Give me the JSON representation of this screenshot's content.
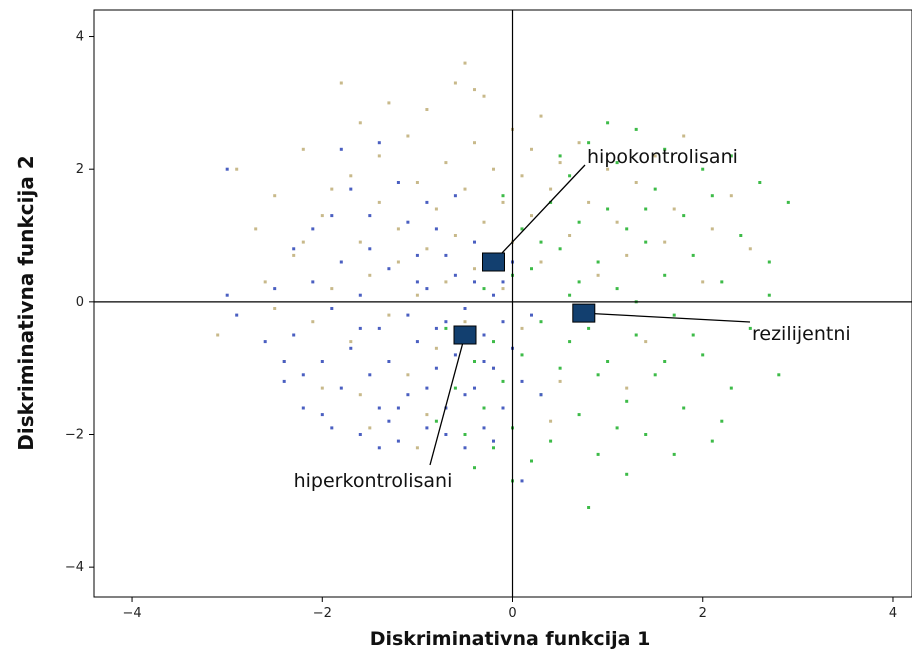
{
  "chart_data": {
    "type": "scatter",
    "xlabel": "Diskriminativna funkcija 1",
    "ylabel": "Diskriminativna funkcija 2",
    "xlim": [
      -4.4,
      4.2
    ],
    "ylim": [
      -4.45,
      4.4
    ],
    "x_ticks": [
      -4,
      -2,
      0,
      2,
      4
    ],
    "y_ticks": [
      -4,
      -2,
      0,
      2,
      4
    ],
    "reference_lines": {
      "x": 0,
      "y": 0
    },
    "colors": {
      "hipokontrolisani": "#c8b98a",
      "rezilijentni": "#3dbb48",
      "hiperkontrolisani": "#4a5fc1",
      "centroid": "#123f6f"
    },
    "centroids": [
      {
        "label": "hipokontrolisani",
        "x": -0.2,
        "y": 0.6
      },
      {
        "label": "rezilijentni",
        "x": 0.75,
        "y": -0.17
      },
      {
        "label": "hiperkontrolisani",
        "x": -0.5,
        "y": -0.5
      }
    ],
    "series": [
      {
        "group": "hipokontrolisani",
        "color": "#c8b98a",
        "points": [
          [
            -3.1,
            -0.5
          ],
          [
            -2.9,
            2.0
          ],
          [
            -2.7,
            1.1
          ],
          [
            -2.6,
            0.3
          ],
          [
            -2.5,
            1.6
          ],
          [
            -2.4,
            -0.9
          ],
          [
            -2.3,
            0.7
          ],
          [
            -2.2,
            2.3
          ],
          [
            -2.1,
            -0.3
          ],
          [
            -2.0,
            1.3
          ],
          [
            -2.0,
            -1.3
          ],
          [
            -1.9,
            0.2
          ],
          [
            -1.8,
            3.3
          ],
          [
            -1.7,
            1.9
          ],
          [
            -1.7,
            -0.6
          ],
          [
            -1.6,
            0.9
          ],
          [
            -1.6,
            2.7
          ],
          [
            -1.5,
            -1.9
          ],
          [
            -1.5,
            0.4
          ],
          [
            -1.4,
            1.5
          ],
          [
            -1.4,
            2.2
          ],
          [
            -1.3,
            -0.2
          ],
          [
            -1.3,
            3.0
          ],
          [
            -1.2,
            1.1
          ],
          [
            -1.2,
            0.6
          ],
          [
            -1.1,
            2.5
          ],
          [
            -1.1,
            -1.1
          ],
          [
            -1.0,
            1.8
          ],
          [
            -1.0,
            0.1
          ],
          [
            -0.9,
            2.9
          ],
          [
            -0.9,
            0.8
          ],
          [
            -0.8,
            1.4
          ],
          [
            -0.8,
            -0.7
          ],
          [
            -0.7,
            2.1
          ],
          [
            -0.7,
            0.3
          ],
          [
            -0.6,
            3.3
          ],
          [
            -0.6,
            1.0
          ],
          [
            -0.5,
            1.7
          ],
          [
            -0.5,
            -0.3
          ],
          [
            -0.4,
            2.4
          ],
          [
            -0.4,
            0.5
          ],
          [
            -0.3,
            3.1
          ],
          [
            -0.3,
            1.2
          ],
          [
            -0.2,
            2.0
          ],
          [
            -0.2,
            -1.0
          ],
          [
            -0.1,
            1.5
          ],
          [
            -0.1,
            0.2
          ],
          [
            0.0,
            2.6
          ],
          [
            0.0,
            0.9
          ],
          [
            0.1,
            1.9
          ],
          [
            0.1,
            -0.4
          ],
          [
            0.2,
            1.3
          ],
          [
            0.2,
            2.3
          ],
          [
            0.3,
            0.6
          ],
          [
            0.4,
            1.7
          ],
          [
            0.5,
            2.1
          ],
          [
            0.5,
            -1.2
          ],
          [
            0.6,
            1.0
          ],
          [
            0.7,
            2.4
          ],
          [
            0.8,
            1.5
          ],
          [
            0.9,
            0.4
          ],
          [
            1.0,
            2.0
          ],
          [
            1.1,
            1.2
          ],
          [
            1.2,
            0.7
          ],
          [
            1.3,
            1.8
          ],
          [
            1.4,
            -0.6
          ],
          [
            1.5,
            2.2
          ],
          [
            1.6,
            0.9
          ],
          [
            1.7,
            1.4
          ],
          [
            1.8,
            2.5
          ],
          [
            2.0,
            0.3
          ],
          [
            2.1,
            1.1
          ],
          [
            2.3,
            1.6
          ],
          [
            2.5,
            0.8
          ],
          [
            -0.5,
            3.6
          ],
          [
            -0.4,
            3.2
          ],
          [
            -1.9,
            1.7
          ],
          [
            -2.2,
            0.9
          ],
          [
            0.3,
            2.8
          ],
          [
            -1.6,
            -1.4
          ],
          [
            -0.9,
            -1.7
          ],
          [
            0.4,
            -1.8
          ],
          [
            1.2,
            -1.3
          ],
          [
            -0.2,
            -2.1
          ],
          [
            -2.5,
            -0.1
          ],
          [
            -1.0,
            -2.2
          ]
        ]
      },
      {
        "group": "rezilijentni",
        "color": "#3dbb48",
        "points": [
          [
            2.9,
            1.5
          ],
          [
            2.8,
            -1.1
          ],
          [
            2.7,
            0.6
          ],
          [
            2.6,
            1.8
          ],
          [
            2.5,
            -0.4
          ],
          [
            2.4,
            1.0
          ],
          [
            2.3,
            -1.3
          ],
          [
            2.2,
            0.3
          ],
          [
            2.1,
            1.6
          ],
          [
            2.0,
            -0.8
          ],
          [
            2.0,
            2.0
          ],
          [
            1.9,
            0.7
          ],
          [
            1.8,
            -1.6
          ],
          [
            1.8,
            1.3
          ],
          [
            1.7,
            -0.2
          ],
          [
            1.6,
            2.3
          ],
          [
            1.6,
            0.4
          ],
          [
            1.5,
            -1.1
          ],
          [
            1.5,
            1.7
          ],
          [
            1.4,
            0.9
          ],
          [
            1.4,
            -2.0
          ],
          [
            1.3,
            2.6
          ],
          [
            1.3,
            -0.5
          ],
          [
            1.2,
            1.1
          ],
          [
            1.2,
            -1.5
          ],
          [
            1.1,
            0.2
          ],
          [
            1.1,
            2.1
          ],
          [
            1.0,
            -0.9
          ],
          [
            1.0,
            1.4
          ],
          [
            0.9,
            -2.3
          ],
          [
            0.9,
            0.6
          ],
          [
            0.8,
            2.4
          ],
          [
            0.8,
            -0.4
          ],
          [
            0.7,
            1.2
          ],
          [
            0.7,
            -1.7
          ],
          [
            0.6,
            0.1
          ],
          [
            0.6,
            1.9
          ],
          [
            0.5,
            -1.0
          ],
          [
            0.5,
            0.8
          ],
          [
            0.4,
            -2.1
          ],
          [
            0.4,
            1.5
          ],
          [
            0.3,
            -0.3
          ],
          [
            0.3,
            -1.4
          ],
          [
            0.2,
            0.5
          ],
          [
            0.2,
            -2.4
          ],
          [
            0.1,
            1.1
          ],
          [
            0.1,
            -0.8
          ],
          [
            0.0,
            -1.9
          ],
          [
            0.0,
            0.4
          ],
          [
            -0.1,
            -1.2
          ],
          [
            -0.1,
            1.6
          ],
          [
            -0.2,
            -0.6
          ],
          [
            -0.2,
            -2.2
          ],
          [
            -0.3,
            0.2
          ],
          [
            -0.3,
            -1.6
          ],
          [
            -0.4,
            -0.9
          ],
          [
            -0.5,
            -2.0
          ],
          [
            -0.6,
            -1.3
          ],
          [
            -0.7,
            -0.4
          ],
          [
            -0.8,
            -1.8
          ],
          [
            0.8,
            -3.1
          ],
          [
            1.2,
            -2.6
          ],
          [
            0.0,
            -2.7
          ],
          [
            2.1,
            -2.1
          ],
          [
            1.7,
            -2.3
          ],
          [
            2.7,
            0.1
          ],
          [
            2.3,
            2.2
          ],
          [
            1.0,
            2.7
          ],
          [
            0.5,
            2.2
          ],
          [
            1.9,
            -0.5
          ],
          [
            1.3,
            0.0
          ],
          [
            0.9,
            -1.1
          ],
          [
            0.6,
            -0.6
          ],
          [
            1.6,
            -0.9
          ],
          [
            2.2,
            -1.8
          ],
          [
            0.3,
            0.9
          ],
          [
            1.1,
            -1.9
          ],
          [
            1.4,
            1.4
          ],
          [
            0.7,
            0.3
          ],
          [
            -0.4,
            -2.5
          ]
        ]
      },
      {
        "group": "hiperkontrolisani",
        "color": "#4a5fc1",
        "points": [
          [
            -3.0,
            2.0
          ],
          [
            -3.0,
            0.1
          ],
          [
            -2.9,
            -0.2
          ],
          [
            -2.5,
            0.2
          ],
          [
            -2.4,
            -1.2
          ],
          [
            -2.3,
            -0.5
          ],
          [
            -2.2,
            -1.6
          ],
          [
            -2.1,
            0.3
          ],
          [
            -2.0,
            -0.9
          ],
          [
            -1.9,
            -1.9
          ],
          [
            -1.9,
            -0.1
          ],
          [
            -1.8,
            -1.3
          ],
          [
            -1.8,
            0.6
          ],
          [
            -1.7,
            -0.7
          ],
          [
            -1.6,
            -2.0
          ],
          [
            -1.6,
            0.1
          ],
          [
            -1.5,
            -1.1
          ],
          [
            -1.5,
            1.3
          ],
          [
            -1.4,
            -0.4
          ],
          [
            -1.4,
            -1.6
          ],
          [
            -1.3,
            0.5
          ],
          [
            -1.3,
            -0.9
          ],
          [
            -1.2,
            -2.1
          ],
          [
            -1.2,
            1.8
          ],
          [
            -1.1,
            -0.2
          ],
          [
            -1.1,
            -1.4
          ],
          [
            -1.0,
            0.7
          ],
          [
            -1.0,
            -0.6
          ],
          [
            -0.9,
            -1.9
          ],
          [
            -0.9,
            0.2
          ],
          [
            -0.8,
            -1.0
          ],
          [
            -0.8,
            1.1
          ],
          [
            -0.7,
            -0.3
          ],
          [
            -0.7,
            -1.6
          ],
          [
            -0.6,
            0.4
          ],
          [
            -0.6,
            -0.8
          ],
          [
            -0.5,
            -2.2
          ],
          [
            -0.5,
            -0.1
          ],
          [
            -0.4,
            -1.3
          ],
          [
            -0.4,
            0.9
          ],
          [
            -0.3,
            -0.5
          ],
          [
            -0.3,
            -1.9
          ],
          [
            -0.2,
            0.1
          ],
          [
            -0.2,
            -1.0
          ],
          [
            -0.1,
            -0.3
          ],
          [
            -0.1,
            -1.6
          ],
          [
            0.0,
            0.6
          ],
          [
            0.0,
            -0.7
          ],
          [
            0.1,
            -1.2
          ],
          [
            0.1,
            -2.7
          ],
          [
            0.2,
            -0.2
          ],
          [
            0.3,
            -1.4
          ],
          [
            -1.4,
            2.4
          ],
          [
            -1.8,
            2.3
          ],
          [
            -1.7,
            1.7
          ],
          [
            -2.4,
            -0.9
          ],
          [
            -2.1,
            1.1
          ],
          [
            -1.5,
            0.8
          ],
          [
            -0.9,
            1.5
          ],
          [
            -0.6,
            1.6
          ],
          [
            -1.2,
            -1.6
          ],
          [
            -2.0,
            -1.7
          ],
          [
            -1.3,
            -1.8
          ],
          [
            -0.7,
            -2.0
          ],
          [
            -0.2,
            -2.1
          ],
          [
            -2.6,
            -0.6
          ],
          [
            -2.3,
            0.8
          ],
          [
            -1.0,
            0.3
          ],
          [
            -0.4,
            0.3
          ],
          [
            -0.8,
            -0.4
          ],
          [
            -1.6,
            -0.4
          ],
          [
            -1.1,
            1.2
          ],
          [
            -0.5,
            -1.4
          ],
          [
            -0.1,
            0.3
          ],
          [
            -1.9,
            1.3
          ],
          [
            -2.2,
            -1.1
          ],
          [
            -1.4,
            -2.2
          ],
          [
            -0.9,
            -1.3
          ],
          [
            -0.3,
            -0.9
          ],
          [
            -0.7,
            0.7
          ]
        ]
      }
    ]
  }
}
